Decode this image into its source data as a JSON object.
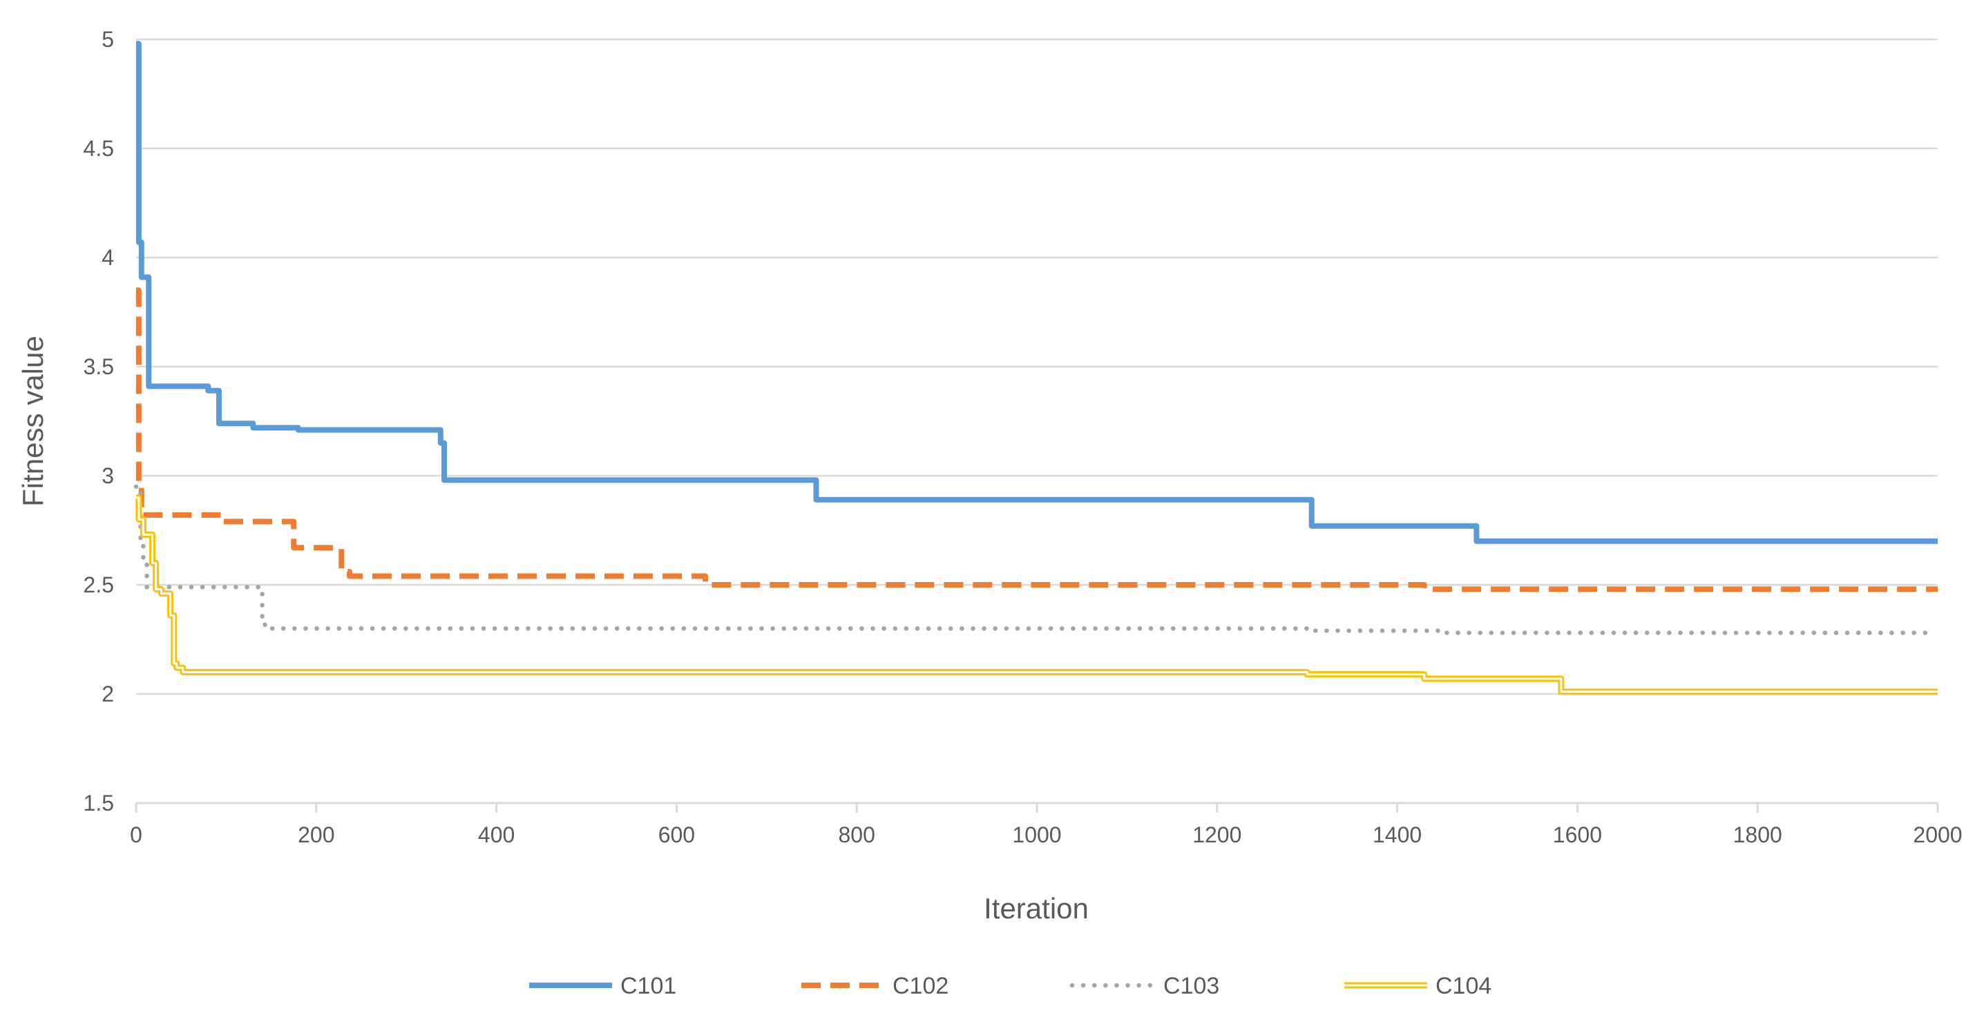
{
  "chart_data": {
    "type": "line",
    "title": "",
    "xlabel": "Iteration",
    "ylabel": "Fitness value",
    "xlim": [
      0,
      2000
    ],
    "ylim": [
      1.5,
      5
    ],
    "x_ticks": [
      "0",
      "200",
      "400",
      "600",
      "800",
      "1000",
      "1200",
      "1400",
      "1600",
      "1800",
      "2000"
    ],
    "y_ticks": [
      "1.5",
      "2",
      "2.5",
      "3",
      "3.5",
      "4",
      "4.5",
      "5"
    ],
    "grid": "horizontal",
    "legend_position": "bottom",
    "series": [
      {
        "name": "C101",
        "color": "#5B9BD5",
        "style": "solid",
        "x": [
          0,
          3,
          3,
          6,
          6,
          14,
          14,
          80,
          80,
          92,
          92,
          130,
          130,
          180,
          180,
          338,
          338,
          342,
          342,
          755,
          755,
          1020,
          1020,
          1305,
          1305,
          1488,
          1488,
          2000
        ],
        "y": [
          4.98,
          4.98,
          4.07,
          4.07,
          3.91,
          3.91,
          3.41,
          3.41,
          3.39,
          3.39,
          3.24,
          3.24,
          3.22,
          3.22,
          3.21,
          3.21,
          3.15,
          3.15,
          2.98,
          2.98,
          2.89,
          2.89,
          2.89,
          2.89,
          2.77,
          2.77,
          2.7,
          2.7
        ]
      },
      {
        "name": "C102",
        "color": "#ED7D31",
        "style": "dashed",
        "x": [
          0,
          3,
          3,
          6,
          6,
          95,
          95,
          175,
          175,
          228,
          228,
          237,
          237,
          632,
          632,
          1430,
          1430,
          2000
        ],
        "y": [
          3.85,
          3.85,
          2.95,
          2.95,
          2.82,
          2.82,
          2.79,
          2.79,
          2.67,
          2.67,
          2.56,
          2.56,
          2.54,
          2.54,
          2.5,
          2.5,
          2.48,
          2.48
        ],
        "end_x": 2000
      },
      {
        "name": "C103",
        "color": "#A5A5A5",
        "style": "dotted",
        "x": [
          0,
          5,
          5,
          8,
          8,
          12,
          12,
          140,
          140,
          143,
          143,
          1300,
          1300,
          1450,
          1450,
          1990
        ],
        "y": [
          2.95,
          2.95,
          2.7,
          2.7,
          2.62,
          2.62,
          2.49,
          2.49,
          2.35,
          2.35,
          2.3,
          2.3,
          2.29,
          2.29,
          2.28,
          2.28
        ]
      },
      {
        "name": "C104",
        "color": "#FFC000",
        "style": "double",
        "x": [
          0,
          3,
          3,
          8,
          8,
          18,
          18,
          22,
          22,
          28,
          28,
          38,
          38,
          42,
          42,
          45,
          45,
          52,
          52,
          1300,
          1300,
          1430,
          1430,
          1582,
          1582,
          2000
        ],
        "y": [
          2.9,
          2.9,
          2.8,
          2.8,
          2.73,
          2.73,
          2.6,
          2.6,
          2.48,
          2.48,
          2.46,
          2.46,
          2.36,
          2.36,
          2.14,
          2.14,
          2.12,
          2.12,
          2.1,
          2.1,
          2.09,
          2.09,
          2.07,
          2.07,
          2.01,
          2.01
        ]
      }
    ]
  }
}
